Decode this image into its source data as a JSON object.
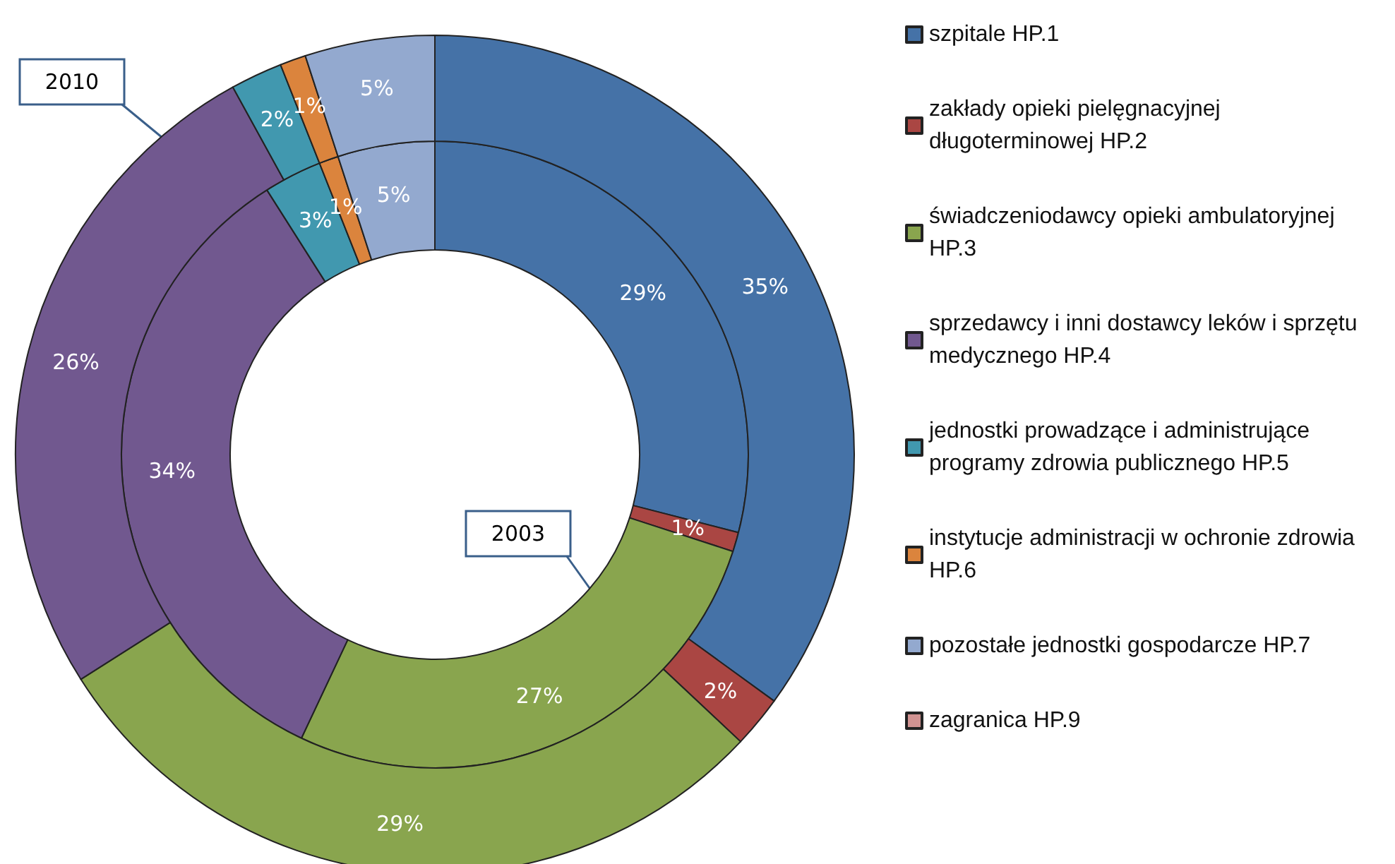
{
  "chart_data": {
    "type": "donut",
    "categories": [
      "szpitale HP.1",
      "zakłady opieki pielęgnacyjnej długoterminowej HP.2",
      "świadczeniodawcy opieki ambulatoryjnej HP.3",
      "sprzedawcy i inni dostawcy leków i sprzętu medycznego HP.4",
      "jednostki prowadzące i administrujące programy zdrowia publicznego HP.5",
      "instytucje administracji w ochronie zdrowia HP.6",
      "pozostałe jednostki gospodarcze HP.7",
      "zagranica HP.9"
    ],
    "colors": [
      "#4572a7",
      "#aa4643",
      "#89a54e",
      "#71588f",
      "#4198af",
      "#db843d",
      "#93a9cf",
      "#d19392"
    ],
    "series": [
      {
        "name": "2003",
        "values": [
          29,
          1,
          27,
          34,
          3,
          1,
          5,
          0
        ],
        "value_labels": [
          "29%",
          "1%",
          "27%",
          "34%",
          "3%",
          "1%",
          "5%",
          null
        ]
      },
      {
        "name": "2010",
        "values": [
          35,
          2,
          29,
          26,
          2,
          1,
          5,
          0
        ],
        "value_labels": [
          "35%",
          "2%",
          "29%",
          "26%",
          "2%",
          "1%",
          "5%",
          null
        ]
      }
    ],
    "legend": "right"
  }
}
